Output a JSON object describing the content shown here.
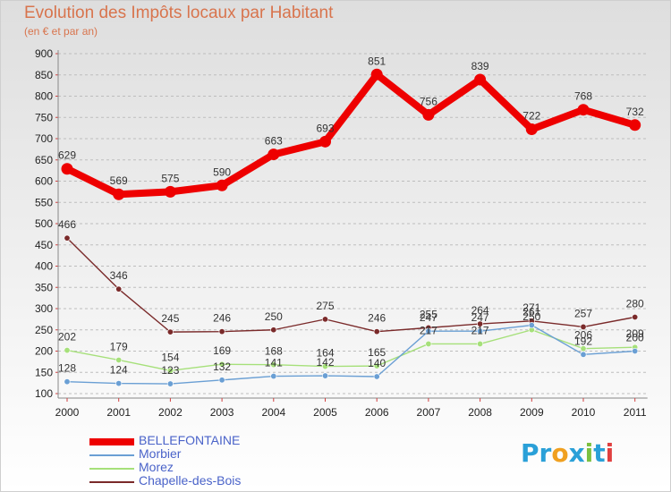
{
  "chart_data": {
    "type": "line",
    "title": "Evolution des Impôts locaux par Habitant",
    "subtitle": "(en € et par an)",
    "xlabel": "",
    "ylabel": "",
    "ylim": [
      100,
      900
    ],
    "ytick_step": 50,
    "categories": [
      "2000",
      "2001",
      "2002",
      "2003",
      "2004",
      "2005",
      "2006",
      "2007",
      "2008",
      "2009",
      "2010",
      "2011"
    ],
    "series": [
      {
        "name": "BELLEFONTAINE",
        "color": "#ee0000",
        "width": "thick",
        "values": [
          629,
          569,
          575,
          590,
          663,
          693,
          851,
          756,
          839,
          722,
          768,
          732
        ]
      },
      {
        "name": "Morbier",
        "color": "#6a9fd4",
        "width": "thin",
        "values": [
          128,
          124,
          123,
          132,
          141,
          142,
          140,
          247,
          247,
          261,
          192,
          200
        ]
      },
      {
        "name": "Morez",
        "color": "#a6e07a",
        "width": "thin",
        "values": [
          202,
          179,
          154,
          169,
          168,
          164,
          165,
          217,
          217,
          250,
          206,
          209
        ]
      },
      {
        "name": "Chapelle-des-Bois",
        "color": "#7a2a2a",
        "width": "thin",
        "values": [
          466,
          346,
          245,
          246,
          250,
          275,
          246,
          255,
          264,
          271,
          257,
          280
        ]
      }
    ],
    "data_labels": {
      "BELLEFONTAINE": [
        "629",
        "569",
        "575",
        "590",
        "663",
        "693",
        "851",
        "756",
        "839",
        "722",
        "768",
        "732"
      ],
      "Morbier": [
        "128",
        "124",
        "123",
        "132",
        "141",
        "142",
        "140",
        "247",
        "247",
        "261",
        "192",
        "200"
      ],
      "Morez": [
        "202",
        "179",
        "154",
        "169",
        "168",
        "164",
        "165",
        "217",
        "217",
        "250",
        "206",
        "209"
      ],
      "Chapelle-des-Bois": [
        "466",
        "346",
        "245",
        "246",
        "250",
        "275",
        "246",
        "255",
        "264",
        "271",
        "257",
        "280"
      ]
    },
    "legend_position": "bottom-left"
  },
  "logo": {
    "letters": [
      "P",
      "r",
      "o",
      "x",
      "i",
      "t",
      "i"
    ],
    "colors": [
      "#2aa0d8",
      "#2aa0d8",
      "#f0a020",
      "#2aa0d8",
      "#7cc040",
      "#2aa0d8",
      "#e04040"
    ]
  }
}
